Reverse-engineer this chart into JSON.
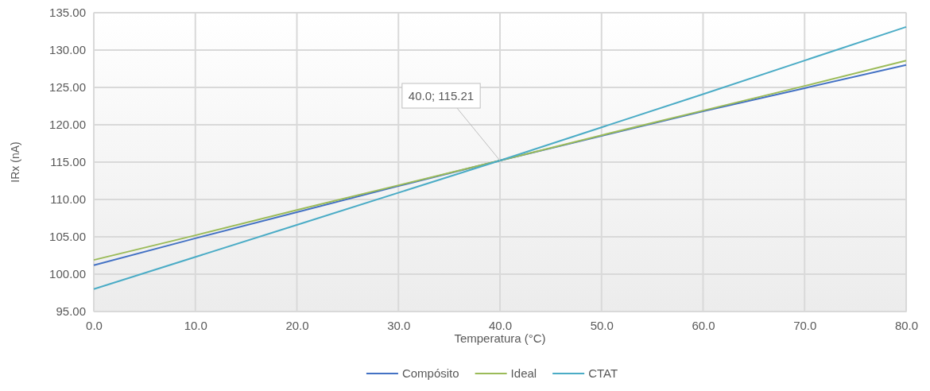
{
  "chart_data": {
    "type": "line",
    "xlabel": "Temperatura (°C)",
    "ylabel": "IRx (nA)",
    "annotations": [
      {
        "text": "40.0; 115.21",
        "x": 40,
        "y": 115.21
      }
    ],
    "series": [
      {
        "name": "Compósito",
        "color": "#4472c4",
        "x": [
          0,
          10,
          20,
          30,
          40,
          50,
          60,
          70,
          80
        ],
        "values": [
          101.2,
          104.8,
          108.3,
          111.8,
          115.21,
          118.5,
          121.8,
          124.9,
          128.0
        ]
      },
      {
        "name": "Ideal",
        "color": "#9bbb59",
        "x": [
          0,
          10,
          20,
          30,
          40,
          50,
          60,
          70,
          80
        ],
        "values": [
          101.9,
          105.2,
          108.6,
          111.9,
          115.21,
          118.6,
          121.9,
          125.2,
          128.6
        ]
      },
      {
        "name": "CTAT",
        "color": "#4bacc6",
        "x": [
          0,
          20,
          40,
          60,
          80
        ],
        "values": [
          98.0,
          106.6,
          115.21,
          124.1,
          133.1
        ]
      }
    ],
    "xlim": [
      0,
      80
    ],
    "ylim": [
      95,
      135
    ],
    "xticks": [
      {
        "value": 0,
        "label": "0.0"
      },
      {
        "value": 10,
        "label": "10.0"
      },
      {
        "value": 20,
        "label": "20.0"
      },
      {
        "value": 30,
        "label": "30.0"
      },
      {
        "value": 40,
        "label": "40.0"
      },
      {
        "value": 50,
        "label": "50.0"
      },
      {
        "value": 60,
        "label": "60.0"
      },
      {
        "value": 70,
        "label": "70.0"
      },
      {
        "value": 80,
        "label": "80.0"
      }
    ],
    "yticks": [
      {
        "value": 95,
        "label": "95.00"
      },
      {
        "value": 100,
        "label": "100.00"
      },
      {
        "value": 105,
        "label": "105.00"
      },
      {
        "value": 110,
        "label": "110.00"
      },
      {
        "value": 115,
        "label": "115.00"
      },
      {
        "value": 120,
        "label": "120.00"
      },
      {
        "value": 125,
        "label": "125.00"
      },
      {
        "value": 130,
        "label": "130.00"
      },
      {
        "value": 135,
        "label": "135.00"
      }
    ],
    "grid": true,
    "legend": "bottom",
    "marker": "none",
    "line_style": "solid"
  }
}
